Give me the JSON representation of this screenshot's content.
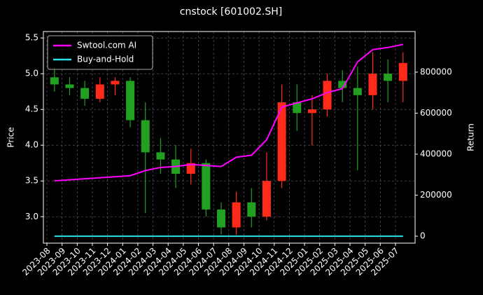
{
  "chart_data": {
    "type": "candlestick",
    "title": "cnstock [601002.SH]",
    "ylabel": "Price",
    "y2label": "Return",
    "categories": [
      "2023-08",
      "2023-09",
      "2023-10",
      "2023-11",
      "2023-12",
      "2024-01",
      "2024-02",
      "2024-03",
      "2024-04",
      "2024-05",
      "2024-06",
      "2024-07",
      "2024-08",
      "2024-09",
      "2024-10",
      "2024-11",
      "2024-12",
      "2025-01",
      "2025-02",
      "2025-03",
      "2025-04",
      "2025-05",
      "2025-06",
      "2025-07"
    ],
    "ohlc": {
      "open": [
        4.95,
        4.85,
        4.8,
        4.65,
        4.85,
        4.9,
        4.35,
        3.9,
        3.8,
        3.6,
        3.75,
        3.1,
        2.85,
        3.2,
        3.0,
        3.5,
        4.6,
        4.45,
        4.5,
        4.9,
        4.8,
        4.7,
        5.0,
        4.9
      ],
      "high": [
        5.1,
        4.95,
        4.9,
        4.95,
        4.95,
        4.95,
        4.6,
        4.1,
        4.0,
        3.95,
        3.8,
        3.2,
        3.35,
        3.4,
        3.9,
        4.85,
        4.85,
        4.7,
        5.0,
        5.05,
        5.1,
        5.3,
        5.2,
        5.3
      ],
      "low": [
        4.75,
        4.7,
        4.55,
        4.6,
        4.7,
        4.25,
        3.05,
        3.6,
        3.4,
        3.45,
        3.0,
        2.75,
        2.75,
        2.85,
        2.95,
        3.4,
        4.2,
        4.0,
        4.4,
        4.6,
        3.65,
        4.5,
        4.6,
        4.6
      ],
      "close": [
        4.85,
        4.8,
        4.65,
        4.85,
        4.9,
        4.35,
        3.9,
        3.8,
        3.6,
        3.75,
        3.1,
        2.85,
        3.2,
        3.0,
        3.5,
        4.6,
        4.45,
        4.5,
        4.9,
        4.8,
        4.7,
        5.0,
        4.9,
        5.15
      ],
      "up_color": "#ff2a1a",
      "down_color": "#22a022"
    },
    "series": [
      {
        "name": "Swtool.com AI",
        "color": "#ff00ff",
        "axis": "y2",
        "values": [
          270000,
          275000,
          280000,
          285000,
          290000,
          295000,
          320000,
          335000,
          340000,
          350000,
          345000,
          340000,
          385000,
          395000,
          470000,
          630000,
          650000,
          670000,
          700000,
          720000,
          850000,
          910000,
          920000,
          935000
        ]
      },
      {
        "name": "Buy-and-Hold",
        "color": "#2de2e6",
        "axis": "y2",
        "values": [
          0,
          0,
          0,
          0,
          0,
          0,
          0,
          0,
          0,
          0,
          0,
          0,
          0,
          0,
          0,
          0,
          0,
          0,
          0,
          0,
          0,
          0,
          0,
          0
        ]
      }
    ],
    "ylim": [
      2.63,
      5.59
    ],
    "yticks": [
      {
        "value": 3,
        "label": "3.0"
      },
      3.5,
      {
        "value": 4,
        "label": "4.0"
      },
      4.5,
      {
        "value": 5,
        "label": "5.0"
      },
      5.5
    ],
    "y2lim": [
      -34000,
      998000
    ],
    "y2ticks": [
      0,
      200000,
      400000,
      600000,
      800000
    ],
    "grid": true,
    "legend": "upper left"
  }
}
